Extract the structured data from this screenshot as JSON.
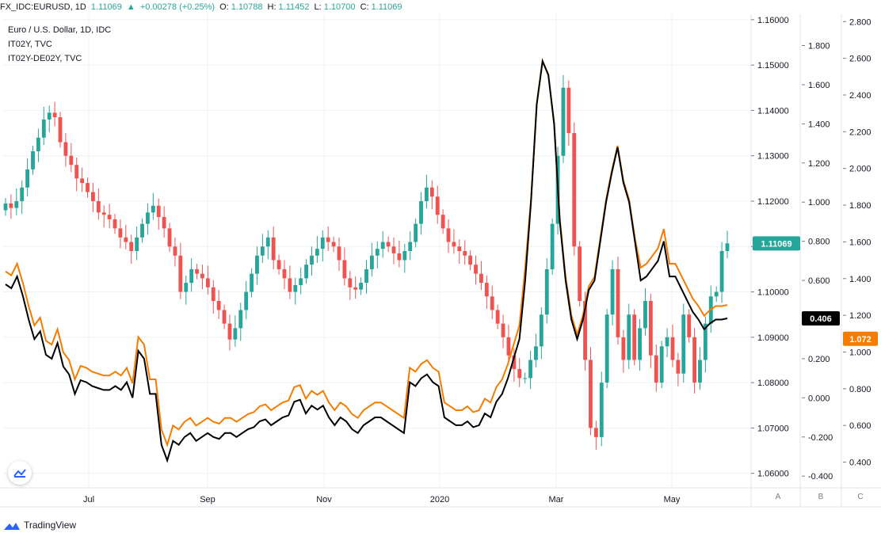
{
  "header": {
    "symbol": "FX_IDC:EURUSD, 1D",
    "last": "1.11069",
    "change": "+0.00278 (+0.25%)",
    "o_label": "O:",
    "o": "1.10788",
    "h_label": "H:",
    "h": "1.11452",
    "l_label": "L:",
    "l": "1.10700",
    "c_label": "C:",
    "c": "1.11069"
  },
  "legend": {
    "main": "Euro / U.S. Dollar, 1D, IDC",
    "s1": "IT02Y, TVC",
    "s2": "IT02Y-DE02Y, TVC"
  },
  "price_labels": {
    "eurusd": "1.11069",
    "it02y": "0.406",
    "spread": "1.072"
  },
  "scale_buttons": [
    "A",
    "B",
    "C"
  ],
  "brand": "TradingView",
  "colors": {
    "up": "#26a69a",
    "down": "#ef5350",
    "it02y": "#000000",
    "spread": "#f57c00",
    "grid": "#eef1f4",
    "axis_text": "#131722"
  },
  "chart_data": {
    "type": "candlestick+line",
    "x_labels": [
      "Jul",
      "Sep",
      "Nov",
      "2020",
      "Mar",
      "May"
    ],
    "axes": {
      "A": {
        "ticks": [
          "1.16000",
          "1.15000",
          "1.14000",
          "1.13000",
          "1.12000",
          "1.11000",
          "1.10000",
          "1.09000",
          "1.08000",
          "1.07000",
          "1.06000"
        ],
        "range": [
          1.0568,
          1.1612
        ]
      },
      "B": {
        "ticks": [
          "1.800",
          "1.600",
          "1.400",
          "1.200",
          "1.000",
          "0.800",
          "0.600",
          "0.400",
          "0.200",
          "0.000",
          "-0.200",
          "-0.400"
        ],
        "range": [
          -0.46,
          1.96
        ]
      },
      "C": {
        "ticks": [
          "2.800",
          "2.600",
          "2.400",
          "2.200",
          "2.000",
          "1.800",
          "1.600",
          "1.400",
          "1.200",
          "1.000",
          "0.800",
          "0.600",
          "0.400"
        ],
        "range": [
          0.26,
          2.84
        ]
      }
    },
    "eurusd_closes": [
      1.1195,
      1.1185,
      1.12,
      1.123,
      1.127,
      1.131,
      1.134,
      1.138,
      1.1395,
      1.1385,
      1.133,
      1.13,
      1.128,
      1.125,
      1.124,
      1.122,
      1.12,
      1.1175,
      1.117,
      1.116,
      1.114,
      1.112,
      1.111,
      1.109,
      1.112,
      1.115,
      1.1175,
      1.119,
      1.1165,
      1.114,
      1.11,
      1.108,
      1.1,
      1.102,
      1.105,
      1.104,
      1.103,
      1.101,
      1.098,
      1.096,
      1.093,
      1.0895,
      1.092,
      1.096,
      1.1,
      1.104,
      1.108,
      1.11,
      1.112,
      1.107,
      1.105,
      1.103,
      1.1,
      1.1015,
      1.103,
      1.106,
      1.108,
      1.1095,
      1.112,
      1.111,
      1.11,
      1.107,
      1.103,
      1.101,
      1.1005,
      1.102,
      1.105,
      1.108,
      1.1095,
      1.111,
      1.11,
      1.1085,
      1.107,
      1.109,
      1.111,
      1.115,
      1.12,
      1.123,
      1.121,
      1.117,
      1.114,
      1.111,
      1.11,
      1.109,
      1.108,
      1.106,
      1.104,
      1.102,
      1.099,
      1.096,
      1.093,
      1.09,
      1.086,
      1.083,
      1.081,
      1.081,
      1.085,
      1.088,
      1.095,
      1.105,
      1.115,
      1.13,
      1.145,
      1.135,
      1.11,
      1.098,
      1.085,
      1.07,
      1.068,
      1.08,
      1.095,
      1.105,
      1.09,
      1.085,
      1.095,
      1.085,
      1.092,
      1.098,
      1.086,
      1.08,
      1.088,
      1.09,
      1.085,
      1.082,
      1.095,
      1.09,
      1.08,
      1.085,
      1.093,
      1.099,
      1.1,
      1.109,
      1.1107
    ],
    "it02y_values": [
      0.58,
      0.56,
      0.62,
      0.52,
      0.4,
      0.3,
      0.34,
      0.22,
      0.2,
      0.28,
      0.16,
      0.12,
      0.02,
      0.09,
      0.08,
      0.06,
      0.05,
      0.04,
      0.04,
      0.06,
      0.04,
      0.08,
      0.0,
      0.24,
      0.2,
      0.02,
      0.02,
      -0.24,
      -0.32,
      -0.22,
      -0.24,
      -0.2,
      -0.18,
      -0.22,
      -0.2,
      -0.18,
      -0.2,
      -0.21,
      -0.18,
      -0.18,
      -0.2,
      -0.18,
      -0.16,
      -0.15,
      -0.12,
      -0.11,
      -0.14,
      -0.12,
      -0.1,
      -0.09,
      -0.02,
      -0.01,
      -0.08,
      -0.04,
      -0.06,
      -0.04,
      -0.1,
      -0.14,
      -0.1,
      -0.12,
      -0.16,
      -0.18,
      -0.14,
      -0.12,
      -0.1,
      -0.1,
      -0.12,
      -0.14,
      -0.16,
      -0.18,
      0.08,
      0.06,
      0.1,
      0.12,
      0.08,
      0.06,
      -0.1,
      -0.12,
      -0.14,
      -0.14,
      -0.12,
      -0.15,
      -0.14,
      -0.08,
      -0.1,
      -0.02,
      0.02,
      0.1,
      0.2,
      0.3,
      0.6,
      1.0,
      1.5,
      1.72,
      1.65,
      1.4,
      0.9,
      0.6,
      0.4,
      0.3,
      0.4,
      0.55,
      0.6,
      0.8,
      1.0,
      1.15,
      1.28,
      1.1,
      1.0,
      0.8,
      0.6,
      0.62,
      0.66,
      0.7,
      0.8,
      0.62,
      0.62,
      0.56,
      0.5,
      0.44,
      0.4,
      0.35,
      0.38,
      0.4,
      0.4,
      0.406
    ]
  }
}
